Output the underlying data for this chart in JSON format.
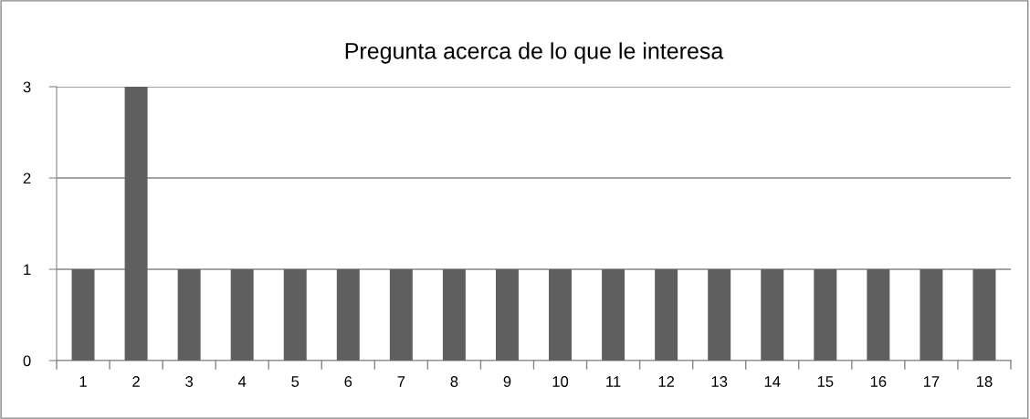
{
  "chart_data": {
    "type": "bar",
    "title": "Pregunta acerca de lo que le interesa",
    "categories": [
      "1",
      "2",
      "3",
      "4",
      "5",
      "6",
      "7",
      "8",
      "9",
      "10",
      "11",
      "12",
      "13",
      "14",
      "15",
      "16",
      "17",
      "18"
    ],
    "values": [
      1,
      3,
      1,
      1,
      1,
      1,
      1,
      1,
      1,
      1,
      1,
      1,
      1,
      1,
      1,
      1,
      1,
      1
    ],
    "color": "#5f5f5f",
    "ylim": [
      0,
      3
    ],
    "yticks": [
      0,
      1,
      2,
      3
    ],
    "grid": "y",
    "legend": false
  }
}
